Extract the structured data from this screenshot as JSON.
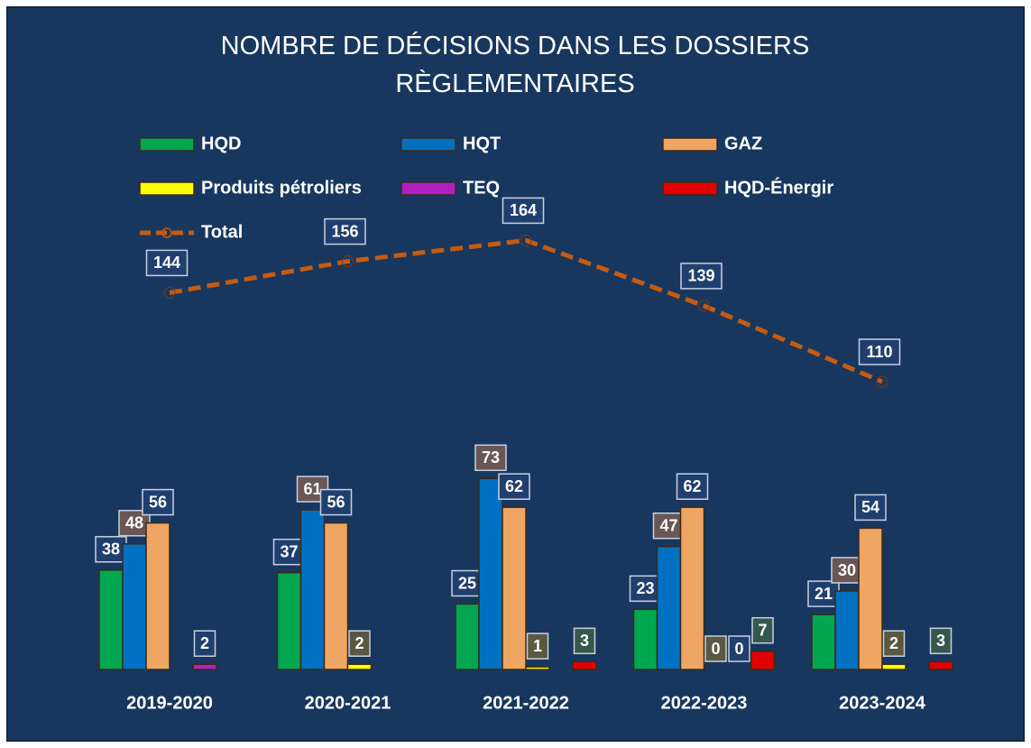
{
  "chart_data": {
    "type": "bar",
    "title": "NOMBRE DE DÉCISIONS DANS LES DOSSIERS RÈGLEMENTAIRES",
    "categories": [
      "2019-2020",
      "2020-2021",
      "2021-2022",
      "2022-2023",
      "2023-2024"
    ],
    "ylim": [
      0,
      200
    ],
    "series": [
      {
        "name": "HQD",
        "color": "#00a650",
        "label_color": "#1f3f6e",
        "values": [
          38,
          37,
          25,
          23,
          21
        ]
      },
      {
        "name": "HQT",
        "color": "#0070c0",
        "label_color": "#6b5656",
        "values": [
          48,
          61,
          73,
          47,
          30
        ]
      },
      {
        "name": "GAZ",
        "color": "#f0a663",
        "label_color": "#1f3f6e",
        "values": [
          56,
          56,
          62,
          62,
          54
        ]
      },
      {
        "name": "Produits pétroliers",
        "color": "#ffff00",
        "label_color": "#5a5840",
        "values": [
          null,
          2,
          1,
          0,
          2
        ]
      },
      {
        "name": "TEQ",
        "color": "#b01fc0",
        "label_color": "#1f3f6e",
        "values": [
          2,
          null,
          null,
          0,
          null
        ]
      },
      {
        "name": "HQD-Énergir",
        "color": "#e00000",
        "label_color": "#35584c",
        "values": [
          null,
          null,
          3,
          7,
          3
        ]
      },
      {
        "name": "Total",
        "type": "line",
        "color": "#c55a11",
        "label_color": "#1f3f6e",
        "values": [
          144,
          156,
          164,
          139,
          110
        ]
      }
    ]
  }
}
